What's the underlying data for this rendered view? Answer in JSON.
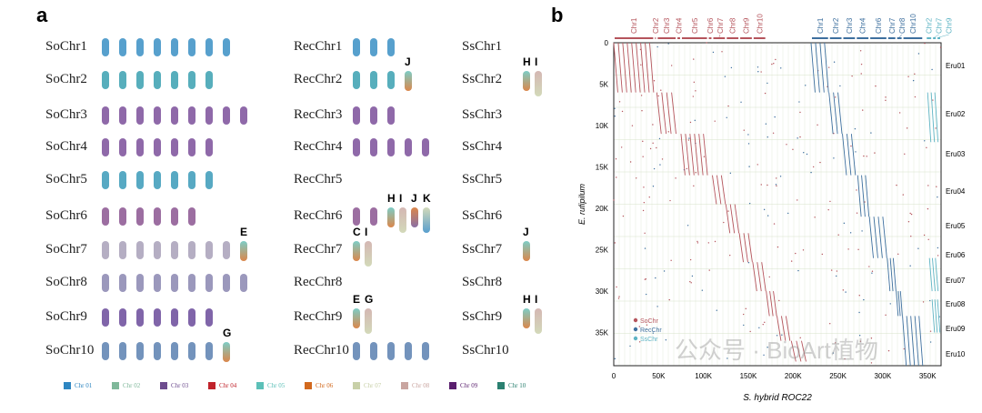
{
  "panel_a": {
    "letter": "a",
    "so_rows": [
      {
        "label": "SoChr1",
        "count": 8,
        "color": "#3a8fc4"
      },
      {
        "label": "SoChr2",
        "count": 7,
        "color": "#3aa0b0"
      },
      {
        "label": "SoChr3",
        "count": 9,
        "color": "#7b4f9a"
      },
      {
        "label": "SoChr4",
        "count": 7,
        "color": "#7b4f9a"
      },
      {
        "label": "SoChr5",
        "count": 7,
        "color": "#3a9ab8"
      },
      {
        "label": "SoChr6",
        "count": 6,
        "color": "#8b5590"
      },
      {
        "label": "SoChr7",
        "count": 8,
        "color": "#a8a0b8",
        "tag": "E"
      },
      {
        "label": "SoChr8",
        "count": 9,
        "color": "#8a86b0"
      },
      {
        "label": "SoChr9",
        "count": 7,
        "color": "#6a4a9a"
      },
      {
        "label": "SoChr10",
        "count": 7,
        "color": "#5a80b0",
        "tag": "G"
      }
    ],
    "rec_rows": [
      {
        "label": "RecChr1",
        "count": 3,
        "color": "#3a8fc4"
      },
      {
        "label": "RecChr2",
        "count": 3,
        "color": "#3aa0b0",
        "tags": [
          "J"
        ]
      },
      {
        "label": "RecChr3",
        "count": 3,
        "color": "#7b4f9a"
      },
      {
        "label": "RecChr4",
        "count": 5,
        "color": "#7b4f9a"
      },
      {
        "label": "RecChr5",
        "count": 0,
        "color": "#3a9ab8"
      },
      {
        "label": "RecChr6",
        "count": 2,
        "color": "#8b5590",
        "tags": [
          "H",
          "I",
          "J",
          "K"
        ]
      },
      {
        "label": "RecChr7",
        "count": 0,
        "color": "#a8a0b8",
        "tags": [
          "C",
          "I"
        ]
      },
      {
        "label": "RecChr8",
        "count": 0,
        "color": "#8a86b0"
      },
      {
        "label": "RecChr9",
        "count": 0,
        "color": "#6a4a9a",
        "tags": [
          "E",
          "G"
        ]
      },
      {
        "label": "RecChr10",
        "count": 5,
        "color": "#5a80b0"
      }
    ],
    "ss_rows": [
      {
        "label": "SsChr1"
      },
      {
        "label": "SsChr2",
        "tags": [
          "H",
          "I"
        ]
      },
      {
        "label": "SsChr3"
      },
      {
        "label": "SsChr4"
      },
      {
        "label": "SsChr5"
      },
      {
        "label": "SsChr6"
      },
      {
        "label": "SsChr7",
        "tags": [
          "J"
        ]
      },
      {
        "label": "SsChr8"
      },
      {
        "label": "SsChr9",
        "tags": [
          "H",
          "I"
        ]
      },
      {
        "label": "SsChr10"
      }
    ],
    "legend": [
      {
        "label": "Chr 01",
        "color": "#2e86c1"
      },
      {
        "label": "Chr 02",
        "color": "#7fb89a"
      },
      {
        "label": "Chr 03",
        "color": "#6d4c8e"
      },
      {
        "label": "Chr 04",
        "color": "#c0232b"
      },
      {
        "label": "Chr 05",
        "color": "#5cc0b8"
      },
      {
        "label": "Chr 06",
        "color": "#d2691e"
      },
      {
        "label": "Chr 07",
        "color": "#c8d0a8"
      },
      {
        "label": "Chr 08",
        "color": "#c9a5a0"
      },
      {
        "label": "Chr 09",
        "color": "#5a1f6e"
      },
      {
        "label": "Chr 10",
        "color": "#2a8070"
      }
    ]
  },
  "panel_b": {
    "letter": "b",
    "watermark": "公众号 · BioArt植物",
    "chart_data": {
      "type": "scatter",
      "xlabel": "S. hybrid ROC22",
      "ylabel": "E. rufipilum",
      "xlim": [
        0,
        365000
      ],
      "ylim": [
        0,
        39000
      ],
      "x_ticks": [
        "0",
        "50K",
        "100K",
        "150K",
        "200K",
        "250K",
        "300K",
        "350K"
      ],
      "y_ticks": [
        "0",
        "5K",
        "10K",
        "15K",
        "20K",
        "25K",
        "30K",
        "35K"
      ],
      "right_labels": [
        "Eru01",
        "Eru02",
        "Eru03",
        "Eru04",
        "Eru05",
        "Eru06",
        "Eru07",
        "Eru08",
        "Eru09",
        "Eru10"
      ],
      "top_groups": [
        {
          "name": "SoChr",
          "color": "#b5545c",
          "chroms": [
            "Chr1",
            "Chr2",
            "Chr3",
            "Chr4",
            "Chr5",
            "Chr6",
            "Chr7",
            "Chr8",
            "Chr9",
            "Chr10"
          ]
        },
        {
          "name": "RecChr",
          "color": "#3d6f9e",
          "chroms": [
            "Chr1",
            "Chr2",
            "Chr3",
            "Chr4",
            "Chr6",
            "Chr7",
            "Chr8",
            "Chr10"
          ]
        },
        {
          "name": "SsChr",
          "color": "#5fb4c4",
          "chroms": [
            "Chr2",
            "Chr7",
            "Chr9"
          ]
        }
      ],
      "legend": [
        {
          "name": "SoChr",
          "color": "#b5545c"
        },
        {
          "name": "RecChr",
          "color": "#3d6f9e"
        },
        {
          "name": "SsChr",
          "color": "#5fb4c4"
        }
      ],
      "legend_position": "bottom-left",
      "grid": true,
      "synteny_blocks": [
        {
          "series": "SoChr",
          "x": [
            0,
            45000
          ],
          "y": [
            0,
            6000
          ]
        },
        {
          "series": "SoChr",
          "x": [
            48000,
            70000
          ],
          "y": [
            6000,
            11000
          ]
        },
        {
          "series": "SoChr",
          "x": [
            75000,
            105000
          ],
          "y": [
            11000,
            16000
          ]
        },
        {
          "series": "SoChr",
          "x": [
            110000,
            125000
          ],
          "y": [
            16000,
            19500
          ]
        },
        {
          "series": "SoChr",
          "x": [
            125000,
            140000
          ],
          "y": [
            19500,
            23000
          ]
        },
        {
          "series": "SoChr",
          "x": [
            140000,
            155000
          ],
          "y": [
            23000,
            26500
          ]
        },
        {
          "series": "SoChr",
          "x": [
            155000,
            170000
          ],
          "y": [
            26500,
            30000
          ]
        },
        {
          "series": "SoChr",
          "x": [
            170000,
            182000
          ],
          "y": [
            30000,
            33000
          ]
        },
        {
          "series": "SoChr",
          "x": [
            182000,
            197000
          ],
          "y": [
            33000,
            36000
          ]
        },
        {
          "series": "SoChr",
          "x": [
            198000,
            215000
          ],
          "y": [
            36000,
            38500
          ]
        },
        {
          "series": "RecChr",
          "x": [
            220000,
            240000
          ],
          "y": [
            0,
            6000
          ]
        },
        {
          "series": "RecChr",
          "x": [
            240000,
            255000
          ],
          "y": [
            6000,
            11000
          ]
        },
        {
          "series": "RecChr",
          "x": [
            255000,
            270000
          ],
          "y": [
            11000,
            16000
          ]
        },
        {
          "series": "RecChr",
          "x": [
            272000,
            285000
          ],
          "y": [
            16000,
            21000
          ]
        },
        {
          "series": "RecChr",
          "x": [
            285000,
            305000
          ],
          "y": [
            21000,
            26000
          ]
        },
        {
          "series": "RecChr",
          "x": [
            305000,
            315000
          ],
          "y": [
            26000,
            30000
          ]
        },
        {
          "series": "RecChr",
          "x": [
            315000,
            322000
          ],
          "y": [
            30000,
            33000
          ]
        },
        {
          "series": "RecChr",
          "x": [
            322000,
            345000
          ],
          "y": [
            33000,
            39000
          ]
        },
        {
          "series": "SsChr",
          "x": [
            350000,
            362000
          ],
          "y": [
            6000,
            12000
          ]
        },
        {
          "series": "SsChr",
          "x": [
            352000,
            362000
          ],
          "y": [
            26000,
            30000
          ]
        },
        {
          "series": "SsChr",
          "x": [
            355000,
            364000
          ],
          "y": [
            31000,
            35000
          ]
        }
      ]
    }
  }
}
